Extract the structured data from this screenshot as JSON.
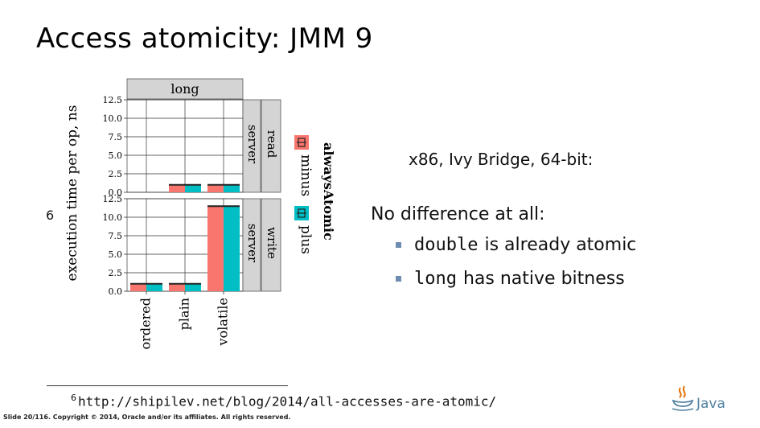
{
  "slide": {
    "title": "Access atomicity: JMM 9",
    "footnote_marker": "6",
    "footnote_number": "6",
    "footnote_url": "http://shipilev.net/blog/2014/all-accesses-are-atomic/",
    "footer": "Slide 20/116. Copyright © 2014, Oracle and/or its affiliates. All rights reserved.",
    "logo_text": "Java"
  },
  "info": {
    "platform": "x86, Ivy Bridge, 64-bit:",
    "lead": "No difference at all:",
    "bullets": [
      {
        "code": "double",
        "text": "is already atomic"
      },
      {
        "code": "long",
        "text": "has native bitness"
      }
    ]
  },
  "colors": {
    "minus": "#f8766d",
    "plus": "#00bfc4",
    "strip_bg": "#d4d4d4",
    "bullet": "#6e8bb0"
  },
  "chart_data": {
    "type": "bar",
    "column_facet": "long",
    "ylabel": "execution time per op, ns",
    "categories": [
      "ordered",
      "plain",
      "volatile"
    ],
    "ylim": [
      0,
      12.5
    ],
    "yticks": [
      "0.0",
      "2.5",
      "5.0",
      "7.5",
      "10.0",
      "12.5"
    ],
    "legend": {
      "title": "alwaysAtomic",
      "entries": [
        "minus",
        "plus"
      ],
      "placement": "right"
    },
    "panels": [
      {
        "row": [
          "read",
          "server"
        ],
        "series": [
          {
            "name": "minus",
            "values": [
              0,
              1.0,
              1.0
            ]
          },
          {
            "name": "plus",
            "values": [
              0,
              1.0,
              1.0
            ]
          }
        ]
      },
      {
        "row": [
          "write",
          "server"
        ],
        "series": [
          {
            "name": "minus",
            "values": [
              1.0,
              1.0,
              11.5
            ]
          },
          {
            "name": "plus",
            "values": [
              1.0,
              1.0,
              11.5
            ]
          }
        ]
      }
    ]
  }
}
